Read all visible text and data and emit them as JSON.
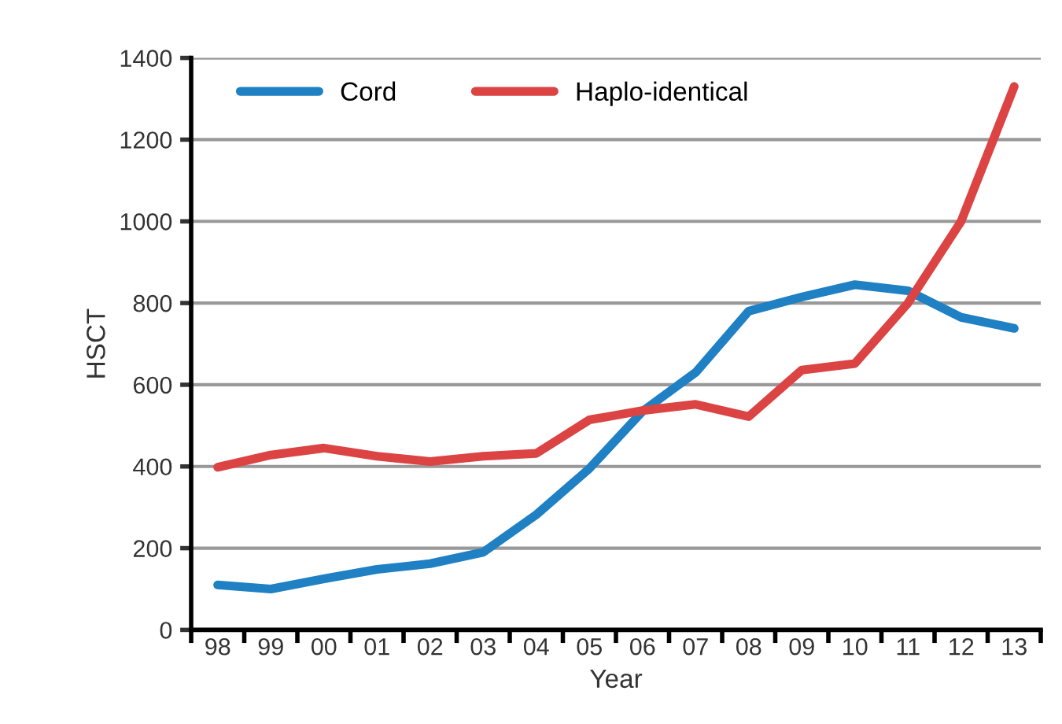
{
  "chart_data": {
    "type": "line",
    "xlabel": "Year",
    "ylabel": "HSCT",
    "categories": [
      "98",
      "99",
      "00",
      "01",
      "02",
      "03",
      "04",
      "05",
      "06",
      "07",
      "08",
      "09",
      "10",
      "11",
      "12",
      "13"
    ],
    "series": [
      {
        "name": "Cord",
        "color": "#1f80c4",
        "values": [
          110,
          100,
          125,
          148,
          162,
          190,
          282,
          395,
          535,
          630,
          780,
          815,
          845,
          830,
          765,
          738
        ]
      },
      {
        "name": "Haplo-identical",
        "color": "#dc4444",
        "values": [
          398,
          428,
          445,
          425,
          412,
          425,
          432,
          514,
          537,
          552,
          522,
          636,
          652,
          800,
          1000,
          1330
        ]
      }
    ],
    "ylim": [
      0,
      1400
    ],
    "yticks": [
      0,
      200,
      400,
      600,
      800,
      1000,
      1200,
      1400
    ],
    "grid": "y",
    "legend": "top left",
    "marker": "none",
    "line_style": "solid"
  }
}
